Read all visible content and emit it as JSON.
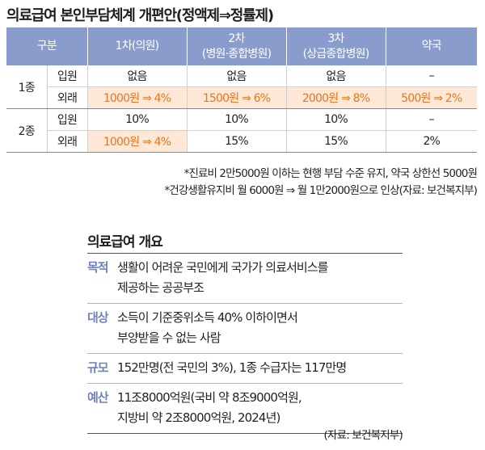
{
  "title": "의료급여 본인부담체계 개편안(정액제⇒정률제)",
  "table": {
    "headers": {
      "category": "구분",
      "clinic": "1차(의원)",
      "hospital_line1": "2차",
      "hospital_line2": "(병원·종합병원)",
      "tertiary_line1": "3차",
      "tertiary_line2": "(상급종합병원)",
      "pharmacy": "약국"
    },
    "grade1": {
      "label": "1종",
      "inpatient": {
        "label": "입원",
        "clinic": "없음",
        "hospital": "없음",
        "tertiary": "없음",
        "pharmacy": "–"
      },
      "outpatient": {
        "label": "외래",
        "clinic": "1000원 ⇒ 4%",
        "hospital": "1500원 ⇒ 6%",
        "tertiary": "2000원 ⇒ 8%",
        "pharmacy": "500원 ⇒ 2%"
      }
    },
    "grade2": {
      "label": "2종",
      "inpatient": {
        "label": "입원",
        "clinic": "10%",
        "hospital": "10%",
        "tertiary": "10%",
        "pharmacy": "–"
      },
      "outpatient": {
        "label": "외래",
        "clinic": "1000원 ⇒ 4%",
        "hospital": "15%",
        "tertiary": "15%",
        "pharmacy": "2%"
      }
    }
  },
  "notes": [
    "*진료비 2만5000원 이하는 현행 부담 수준 유지, 약국 상한선 5000원",
    "*건강생활유지비 월 6000원 ⇒ 월 1만2000원으로 인상(자료: 보건복지부)"
  ],
  "overview": {
    "title": "의료급여 개요",
    "rows": [
      {
        "label": "목적",
        "line1": "생활이 어려운 국민에게 국가가 의료서비스를",
        "line2": "제공하는 공공부조"
      },
      {
        "label": "대상",
        "line1": "소득이 기준중위소득 40% 이하이면서",
        "line2": "부양받을 수 없는 사람"
      },
      {
        "label": "규모",
        "line1": "152만명(전 국민의 3%), 1종 수급자는 117만명",
        "line2": ""
      },
      {
        "label": "예산",
        "line1": "11조8000억원(국비 약 8조9000억원,",
        "line2": "지방비 약 2조8000억원, 2024년)"
      }
    ],
    "source": "(자료: 보건복지부)"
  },
  "colors": {
    "header_bg": "#8a9ccc",
    "highlight_bg": "#fde8d8",
    "highlight_text": "#e8761e",
    "label_blue": "#6e82bd"
  }
}
